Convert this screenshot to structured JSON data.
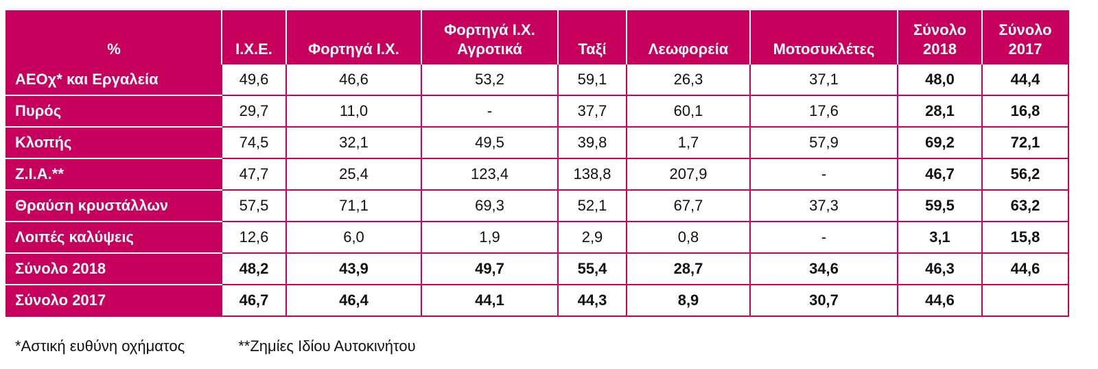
{
  "table": {
    "header": [
      "%",
      "Ι.Χ.Ε.",
      "Φορτηγά Ι.Χ.",
      "Φορτηγά Ι.Χ. Αγροτικά",
      "Ταξί",
      "Λεωφορεία",
      "Μοτοσυκλέτες",
      "Σύνολο 2018",
      "Σύνολο 2017"
    ],
    "rows": [
      [
        "ΑΕΟχ* και Εργαλεία",
        "49,6",
        "46,6",
        "53,2",
        "59,1",
        "26,3",
        "37,1",
        "48,0",
        "44,4"
      ],
      [
        "Πυρός",
        "29,7",
        "11,0",
        "-",
        "37,7",
        "60,1",
        "17,6",
        "28,1",
        "16,8"
      ],
      [
        "Κλοπής",
        "74,5",
        "32,1",
        "49,5",
        "39,8",
        "1,7",
        "57,9",
        "69,2",
        "72,1"
      ],
      [
        "Ζ.Ι.Α.**",
        "47,7",
        "25,4",
        "123,4",
        "138,8",
        "207,9",
        "-",
        "46,7",
        "56,2"
      ],
      [
        "Θραύση κρυστάλλων",
        "57,5",
        "71,1",
        "69,3",
        "52,1",
        "67,7",
        "37,3",
        "59,5",
        "63,2"
      ],
      [
        "Λοιπές καλύψεις",
        "12,6",
        "6,0",
        "1,9",
        "2,9",
        "0,8",
        "-",
        "3,1",
        "15,8"
      ],
      [
        "Σύνολο 2018",
        "48,2",
        "43,9",
        "49,7",
        "55,4",
        "28,7",
        "34,6",
        "46,3",
        "44,6"
      ],
      [
        "Σύνολο 2017",
        "46,7",
        "46,4",
        "44,1",
        "44,3",
        "8,9",
        "30,7",
        "44,6",
        null
      ]
    ]
  },
  "footnotes": [
    "*Αστική ευθύνη οχήματος",
    "**Ζημίες Ιδίου Αυτοκινήτου"
  ]
}
